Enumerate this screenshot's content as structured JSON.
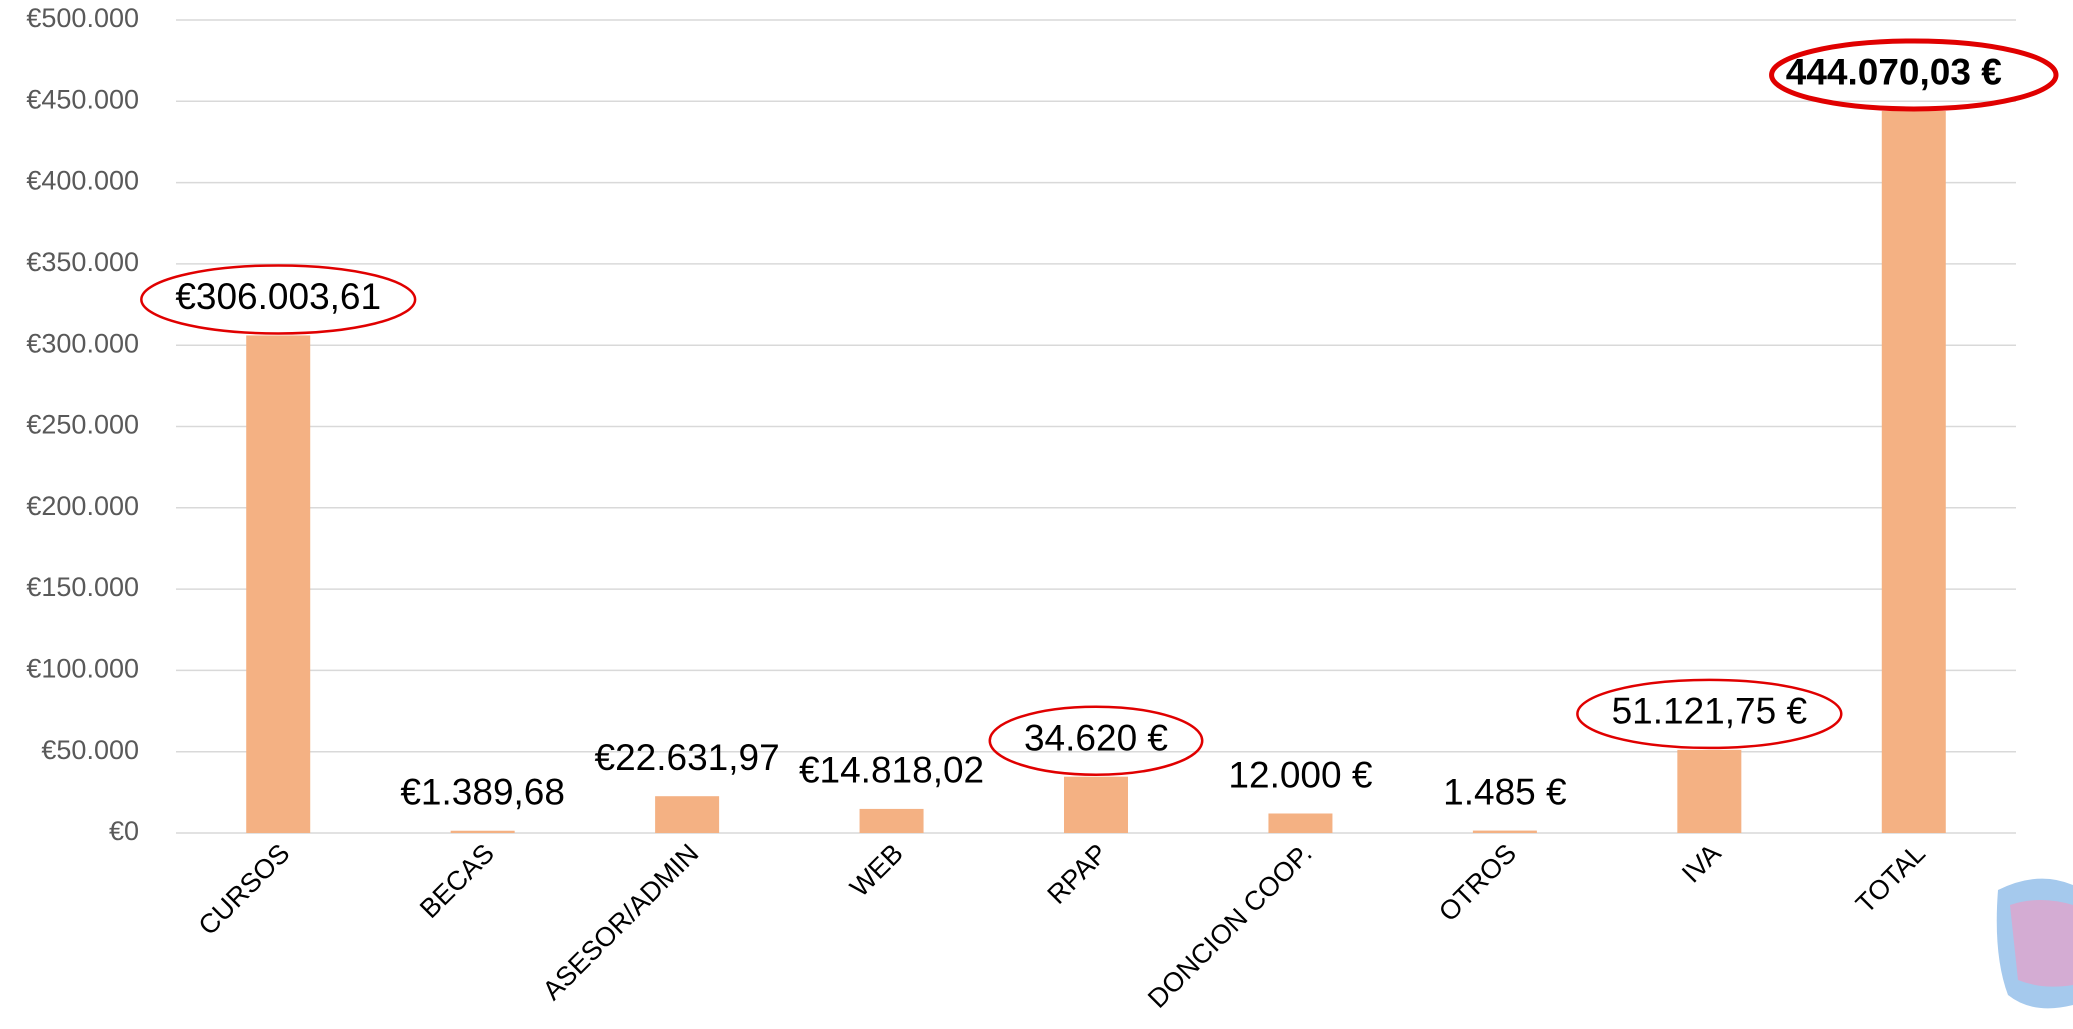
{
  "chart_data": {
    "type": "bar",
    "categories": [
      "CURSOS",
      "BECAS",
      "ASESOR/ADMIN",
      "WEB",
      "RPAP",
      "DONCION COOP.",
      "OTROS",
      "IVA",
      "TOTAL"
    ],
    "values": [
      306003.61,
      1389.68,
      22631.97,
      14818.02,
      34620,
      12000,
      1485,
      51121.75,
      444070.03
    ],
    "value_labels": [
      "€306.003,61",
      "€1.389,68",
      "€22.631,97",
      "€14.818,02",
      "34.620 €",
      "12.000 €",
      "1.485 €",
      "51.121,75 €",
      "444.070,03 €"
    ],
    "color": "#f4b183",
    "circled": [
      0,
      4,
      7,
      8
    ],
    "circle_color": "#e00000",
    "ylim": [
      0,
      500000
    ],
    "yticks": [
      {
        "value": 0,
        "label": "€0"
      },
      {
        "value": 50000,
        "label": "€50.000"
      },
      {
        "value": 100000,
        "label": "€100.000"
      },
      {
        "value": 150000,
        "label": "€150.000"
      },
      {
        "value": 200000,
        "label": "€200.000"
      },
      {
        "value": 250000,
        "label": "€250.000"
      },
      {
        "value": 300000,
        "label": "€300.000"
      },
      {
        "value": 350000,
        "label": "€350.000"
      },
      {
        "value": 400000,
        "label": "€400.000"
      },
      {
        "value": 450000,
        "label": "€450.000"
      },
      {
        "value": 500000,
        "label": "€500.000"
      }
    ],
    "grid": true
  }
}
